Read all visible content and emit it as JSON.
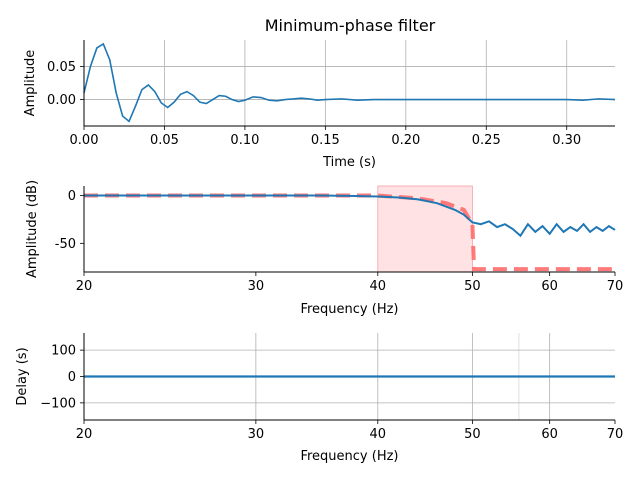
{
  "title": "Minimum-phase filter",
  "colors": {
    "line": "#1f77b4",
    "desired": "#ff6b6b",
    "band": "#ffc0c4",
    "grid": "#b0b0b0"
  },
  "chart_data": [
    {
      "type": "line",
      "panel": "impulse",
      "xlabel": "Time (s)",
      "ylabel": "Amplitude",
      "xlim": [
        0,
        0.33
      ],
      "ylim": [
        -0.04,
        0.09
      ],
      "xticks": [
        "0.00",
        "0.05",
        "0.10",
        "0.15",
        "0.20",
        "0.25",
        "0.30"
      ],
      "yticks": [
        "0.00",
        "0.05"
      ],
      "grid": true,
      "series": [
        {
          "x": [
            0.0,
            0.004,
            0.008,
            0.012,
            0.016,
            0.02,
            0.024,
            0.028,
            0.032,
            0.036,
            0.04,
            0.044,
            0.048,
            0.052,
            0.056,
            0.06,
            0.064,
            0.068,
            0.072,
            0.076,
            0.08,
            0.084,
            0.088,
            0.092,
            0.096,
            0.1,
            0.105,
            0.11,
            0.115,
            0.12,
            0.125,
            0.13,
            0.135,
            0.14,
            0.145,
            0.15,
            0.16,
            0.17,
            0.18,
            0.19,
            0.2,
            0.22,
            0.24,
            0.26,
            0.28,
            0.3,
            0.31,
            0.32,
            0.33
          ],
          "y": [
            0.01,
            0.05,
            0.078,
            0.084,
            0.06,
            0.01,
            -0.025,
            -0.033,
            -0.01,
            0.015,
            0.022,
            0.012,
            -0.005,
            -0.012,
            -0.004,
            0.008,
            0.012,
            0.006,
            -0.004,
            -0.006,
            0.0,
            0.006,
            0.005,
            0.0,
            -0.003,
            -0.001,
            0.004,
            0.003,
            -0.001,
            -0.002,
            0.0,
            0.001,
            0.002,
            0.001,
            -0.001,
            0.0,
            0.001,
            -0.001,
            0.0,
            0.0,
            0.0,
            0.0,
            0.0,
            0.0,
            0.0,
            0.0,
            -0.001,
            0.001,
            0.0
          ]
        }
      ]
    },
    {
      "type": "line",
      "panel": "magnitude",
      "xlabel": "Frequency (Hz)",
      "ylabel": "Amplitude (dB)",
      "xscale": "log",
      "xlim": [
        20,
        70
      ],
      "ylim": [
        -80,
        10
      ],
      "xticks": [
        20,
        30,
        40,
        50,
        60,
        70
      ],
      "yticks": [
        0,
        -50
      ],
      "shaded_band": [
        40,
        50
      ],
      "series": [
        {
          "style": "solid",
          "x": [
            20,
            25,
            30,
            35,
            38,
            40,
            42,
            44,
            46,
            48,
            49,
            50,
            51,
            52,
            53,
            54,
            55,
            56,
            57,
            58,
            59,
            60,
            61,
            62,
            63,
            64,
            65,
            66,
            67,
            68,
            69,
            70
          ],
          "y": [
            0,
            0,
            0,
            0,
            -0.5,
            -1,
            -2,
            -4,
            -8,
            -15,
            -20,
            -28,
            -30,
            -27,
            -33,
            -30,
            -35,
            -42,
            -30,
            -38,
            -32,
            -40,
            -30,
            -38,
            -33,
            -37,
            -30,
            -38,
            -33,
            -37,
            -32,
            -36
          ]
        },
        {
          "style": "dashed",
          "x": [
            20,
            40,
            44,
            47,
            49,
            50,
            50.2,
            70
          ],
          "y": [
            0,
            0,
            -3,
            -8,
            -15,
            -30,
            -77,
            -77
          ]
        }
      ]
    },
    {
      "type": "line",
      "panel": "delay",
      "xlabel": "Frequency (Hz)",
      "ylabel": "Delay (s)",
      "xscale": "log",
      "xlim": [
        20,
        70
      ],
      "ylim": [
        -165,
        165
      ],
      "xticks": [
        20,
        30,
        40,
        50,
        60,
        70
      ],
      "yticks": [
        100,
        0,
        -100
      ],
      "yticklabels": [
        "100",
        "0",
        "−100"
      ],
      "grid": true,
      "series": [
        {
          "x": [
            20,
            70
          ],
          "y": [
            0,
            0
          ]
        }
      ]
    }
  ]
}
